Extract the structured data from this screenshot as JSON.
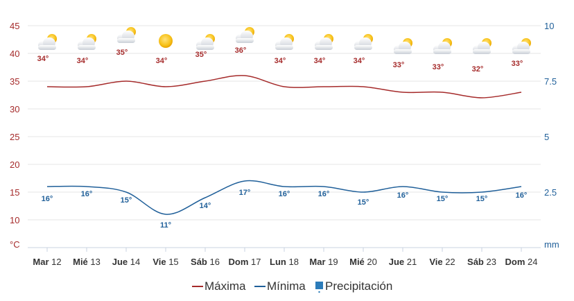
{
  "chart_data": {
    "type": "line",
    "categories": [
      {
        "dow": "Mar",
        "day": "12"
      },
      {
        "dow": "Mié",
        "day": "13"
      },
      {
        "dow": "Jue",
        "day": "14"
      },
      {
        "dow": "Vie",
        "day": "15"
      },
      {
        "dow": "Sáb",
        "day": "16"
      },
      {
        "dow": "Dom",
        "day": "17"
      },
      {
        "dow": "Lun",
        "day": "18"
      },
      {
        "dow": "Mar",
        "day": "19"
      },
      {
        "dow": "Mié",
        "day": "20"
      },
      {
        "dow": "Jue",
        "day": "21"
      },
      {
        "dow": "Vie",
        "day": "22"
      },
      {
        "dow": "Sáb",
        "day": "23"
      },
      {
        "dow": "Dom",
        "day": "24"
      }
    ],
    "series": [
      {
        "name": "Máxima",
        "color": "#a52a2a",
        "values": [
          34,
          34,
          35,
          34,
          35,
          36,
          34,
          34,
          34,
          33,
          33,
          32,
          33
        ],
        "labels": [
          "34°",
          "34°",
          "35°",
          "34°",
          "35°",
          "36°",
          "34°",
          "34°",
          "34°",
          "33°",
          "33°",
          "32°",
          "33°"
        ]
      },
      {
        "name": "Mínima",
        "color": "#1f5f99",
        "values": [
          16,
          16,
          15,
          11,
          14,
          17,
          16,
          16,
          15,
          16,
          15,
          15,
          16
        ],
        "labels": [
          "16°",
          "16°",
          "15°",
          "11°",
          "14°",
          "17°",
          "16°",
          "16°",
          "15°",
          "16°",
          "15°",
          "15°",
          "16°"
        ]
      },
      {
        "name": "Precipitación",
        "color": "#2b7bb9",
        "values": [
          0,
          0,
          0,
          0,
          0,
          0,
          0,
          0,
          0,
          0,
          0,
          0,
          0
        ]
      }
    ],
    "conditions": [
      "partly-cloudy-icon",
      "partly-cloudy-icon",
      "partly-cloudy-icon",
      "sunny-icon",
      "partly-cloudy-icon",
      "partly-cloudy-icon",
      "partly-cloudy-icon",
      "partly-cloudy-icon",
      "partly-cloudy-icon",
      "partly-cloudy-icon",
      "partly-cloudy-icon",
      "partly-cloudy-icon",
      "partly-cloudy-icon"
    ],
    "yaxis_left": {
      "unit": "°C",
      "ylim": [
        5,
        45
      ],
      "ticks": [
        "10",
        "15",
        "20",
        "25",
        "30",
        "35",
        "40",
        "45"
      ]
    },
    "yaxis_right": {
      "unit": "mm",
      "ylim": [
        0,
        10
      ],
      "ticks": [
        "2.5",
        "5",
        "7.5",
        "10"
      ]
    },
    "grid": true,
    "legend": "bottom-center",
    "title": "",
    "xlabel": ""
  }
}
